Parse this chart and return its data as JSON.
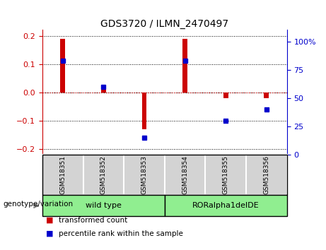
{
  "title": "GDS3720 / ILMN_2470497",
  "samples": [
    "GSM518351",
    "GSM518352",
    "GSM518353",
    "GSM518354",
    "GSM518355",
    "GSM518356"
  ],
  "transformed_counts": [
    0.19,
    0.01,
    -0.13,
    0.19,
    -0.02,
    -0.02
  ],
  "percentile_ranks": [
    83,
    60,
    15,
    83,
    30,
    40
  ],
  "group1_indices": [
    0,
    1,
    2
  ],
  "group2_indices": [
    3,
    4,
    5
  ],
  "group1_name": "wild type",
  "group2_name": "RORalpha1delDE",
  "group_color": "#90EE90",
  "sample_box_color": "#d3d3d3",
  "bar_color": "#cc0000",
  "dot_color": "#0000cc",
  "ylim_left": [
    -0.22,
    0.22
  ],
  "ylim_right": [
    0,
    110
  ],
  "yticks_left": [
    -0.2,
    -0.1,
    0.0,
    0.1,
    0.2
  ],
  "yticks_right": [
    0,
    25,
    50,
    75,
    100
  ],
  "ytick_right_labels": [
    "0",
    "25",
    "50",
    "75",
    "100%"
  ],
  "background_color": "#ffffff",
  "bar_width": 0.12,
  "dot_size": 5,
  "legend_labels": [
    "transformed count",
    "percentile rank within the sample"
  ],
  "genotype_label": "genotype/variation"
}
